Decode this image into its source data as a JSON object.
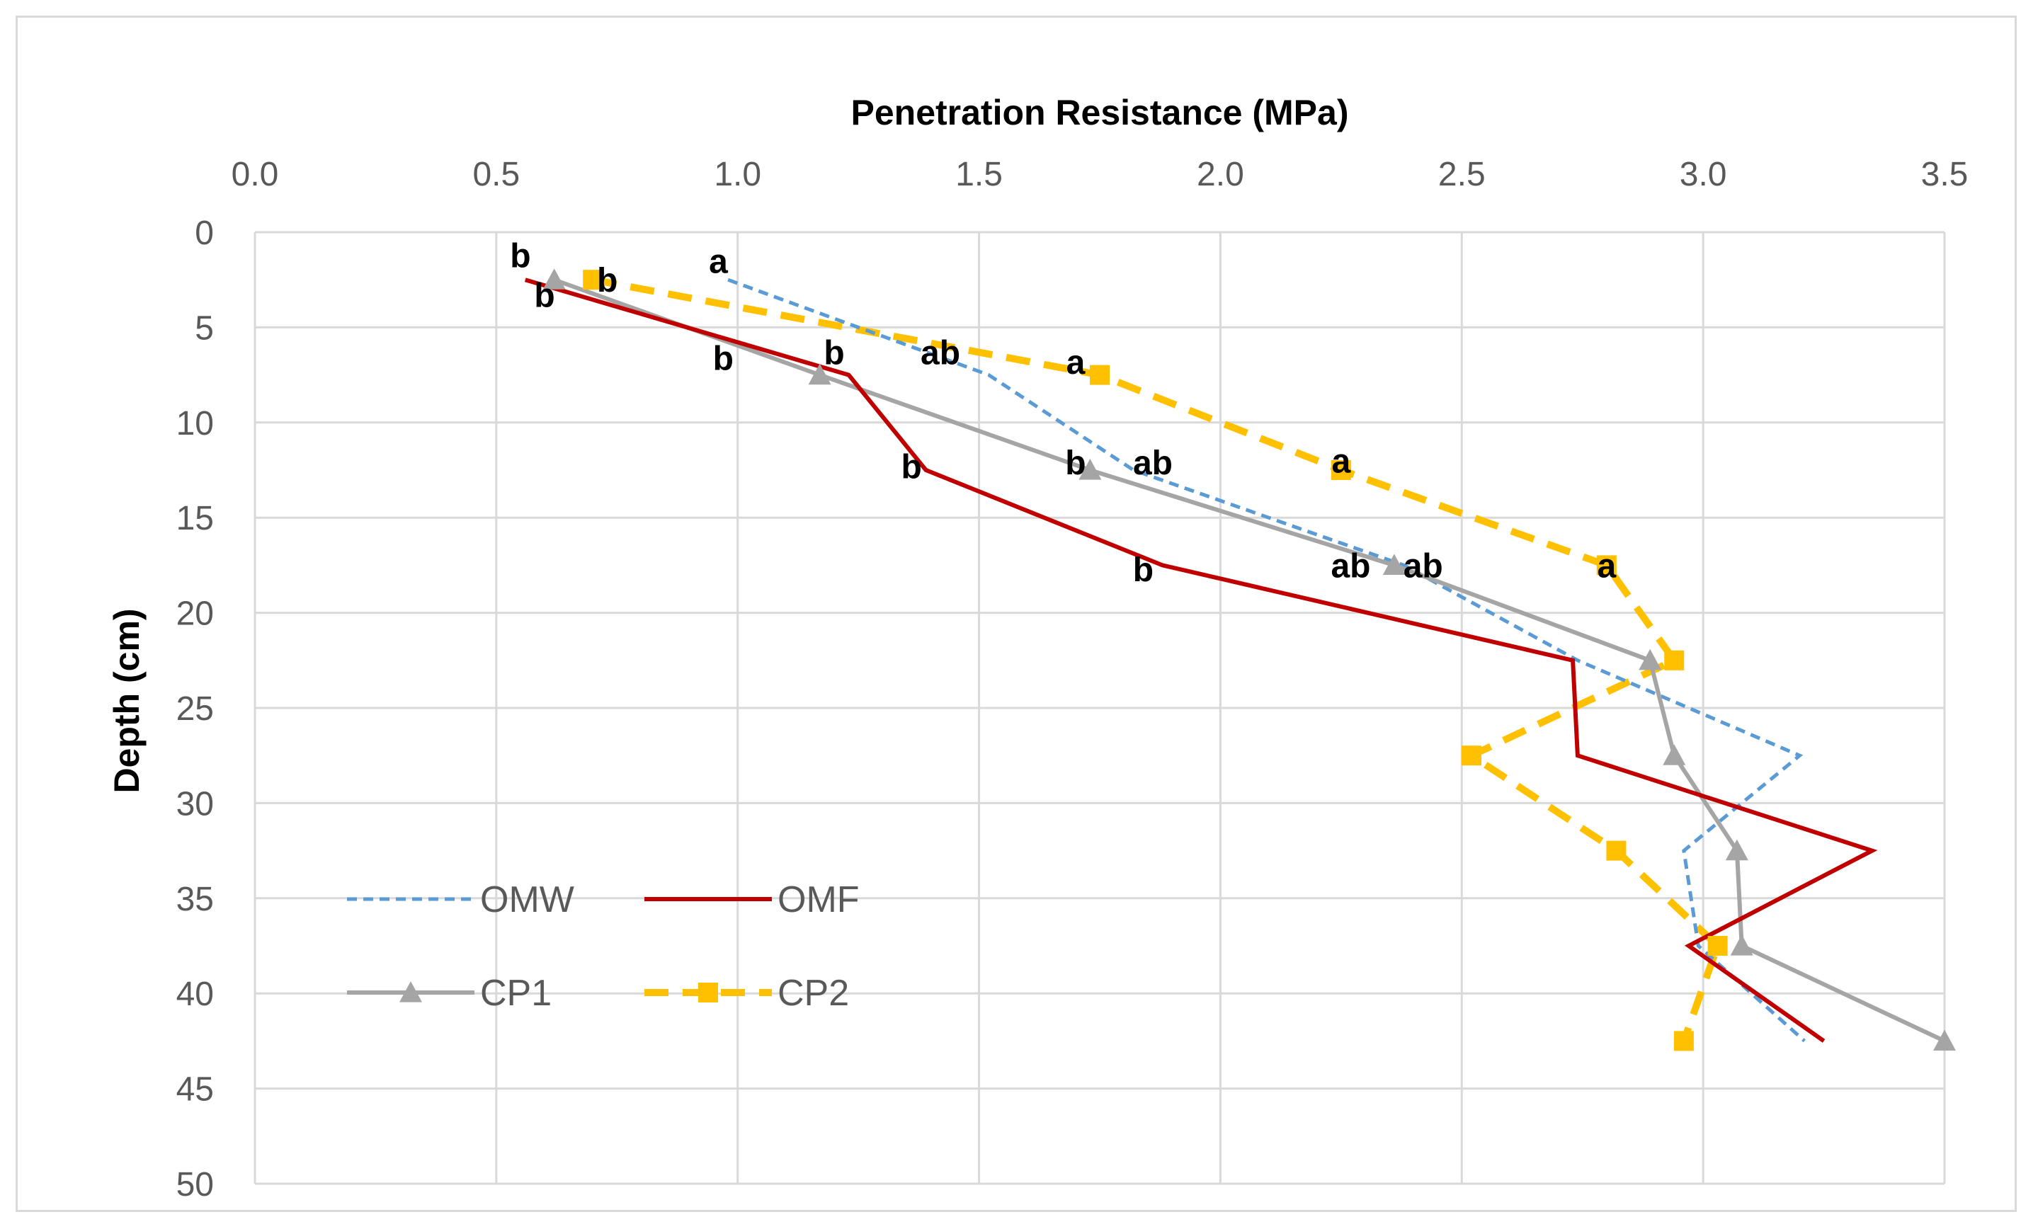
{
  "chart_data": {
    "type": "line",
    "title": "",
    "xlabel": "Penetration Resistance (MPa)",
    "ylabel": "Depth (cm)",
    "xlim": [
      0,
      3.5
    ],
    "ylim": [
      0,
      50
    ],
    "x_axis_position": "top",
    "y_axis_inverted": true,
    "grid": true,
    "x_ticks": [
      "0.0",
      "0.5",
      "1.0",
      "1.5",
      "2.0",
      "2.5",
      "3.0",
      "3.5"
    ],
    "y_ticks": [
      "0",
      "5",
      "10",
      "15",
      "20",
      "25",
      "30",
      "35",
      "40",
      "45",
      "50"
    ],
    "legend_position": "bottom-left",
    "series": [
      {
        "name": "OMW",
        "color": "#5b9bd5",
        "line_style": "dashed-fine",
        "marker": "none",
        "points": [
          [
            0.98,
            2.5
          ],
          [
            1.52,
            7.5
          ],
          [
            1.82,
            12.5
          ],
          [
            2.38,
            17.5
          ],
          [
            2.74,
            22.5
          ],
          [
            3.2,
            27.5
          ],
          [
            2.96,
            32.5
          ],
          [
            2.99,
            37.5
          ],
          [
            3.21,
            42.5
          ]
        ]
      },
      {
        "name": "OMF",
        "color": "#c00000",
        "line_style": "solid",
        "marker": "none",
        "points": [
          [
            0.56,
            2.5
          ],
          [
            1.23,
            7.5
          ],
          [
            1.39,
            12.5
          ],
          [
            1.88,
            17.5
          ],
          [
            2.73,
            22.5
          ],
          [
            2.74,
            27.5
          ],
          [
            3.35,
            32.5
          ],
          [
            2.97,
            37.5
          ],
          [
            3.25,
            42.5
          ]
        ]
      },
      {
        "name": "CP1",
        "color": "#a5a5a5",
        "line_style": "solid",
        "marker": "triangle",
        "points": [
          [
            0.62,
            2.5
          ],
          [
            1.17,
            7.5
          ],
          [
            1.73,
            12.5
          ],
          [
            2.36,
            17.5
          ],
          [
            2.89,
            22.5
          ],
          [
            2.94,
            27.5
          ],
          [
            3.07,
            32.5
          ],
          [
            3.08,
            37.5
          ],
          [
            3.5,
            42.5
          ]
        ]
      },
      {
        "name": "CP2",
        "color": "#ffc000",
        "line_style": "dashed-bold",
        "marker": "square",
        "points": [
          [
            0.7,
            2.5
          ],
          [
            1.75,
            7.5
          ],
          [
            2.25,
            12.5
          ],
          [
            2.8,
            17.5
          ],
          [
            2.94,
            22.5
          ],
          [
            2.52,
            27.5
          ],
          [
            2.82,
            32.5
          ],
          [
            3.03,
            37.5
          ],
          [
            2.96,
            42.5
          ]
        ]
      }
    ],
    "annotations": [
      {
        "text": "b",
        "x": 0.55,
        "y": 1.2
      },
      {
        "text": "b",
        "x": 0.6,
        "y": 3.3
      },
      {
        "text": "b",
        "x": 0.73,
        "y": 2.5
      },
      {
        "text": "a",
        "x": 0.96,
        "y": 1.5
      },
      {
        "text": "b",
        "x": 0.97,
        "y": 6.6
      },
      {
        "text": "b",
        "x": 1.2,
        "y": 6.3
      },
      {
        "text": "ab",
        "x": 1.42,
        "y": 6.3
      },
      {
        "text": "a",
        "x": 1.7,
        "y": 6.8
      },
      {
        "text": "b",
        "x": 1.36,
        "y": 12.3
      },
      {
        "text": "b",
        "x": 1.7,
        "y": 12.1
      },
      {
        "text": "ab",
        "x": 1.86,
        "y": 12.1
      },
      {
        "text": "a",
        "x": 2.25,
        "y": 12.0
      },
      {
        "text": "b",
        "x": 1.84,
        "y": 17.7
      },
      {
        "text": "ab",
        "x": 2.27,
        "y": 17.5
      },
      {
        "text": "ab",
        "x": 2.42,
        "y": 17.5
      },
      {
        "text": "a",
        "x": 2.8,
        "y": 17.5
      }
    ]
  }
}
